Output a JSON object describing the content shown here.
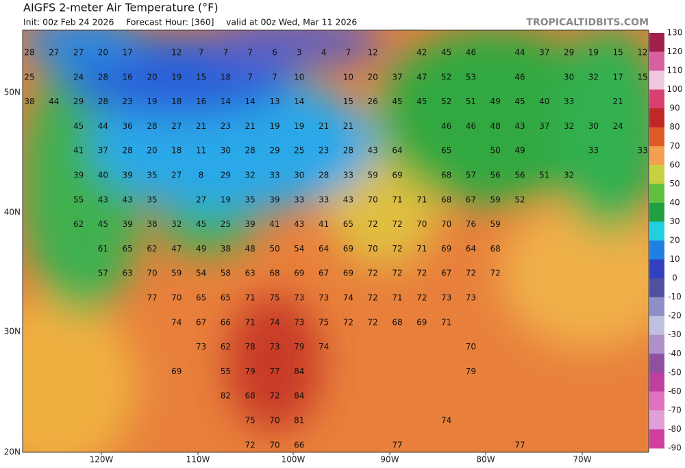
{
  "header": {
    "title": "AIGFS 2-meter Air Temperature (°F)",
    "init": "Init: 00z Feb 24 2026",
    "forecast_hour": "Forecast Hour: [360]",
    "valid": "valid at 00z Wed, Mar 11 2026",
    "source": "TROPICALTIDBITS.COM"
  },
  "map": {
    "latitude_labels": [
      "50N",
      "40N",
      "30N",
      "20N"
    ],
    "longitude_labels": [
      "120W",
      "110W",
      "100W",
      "90W",
      "80W",
      "70W"
    ],
    "station_values": [
      [
        28,
        27,
        27,
        20,
        17,
        null,
        12,
        7,
        7,
        7,
        6,
        3,
        4,
        7,
        12,
        null,
        42,
        45,
        46,
        null,
        44,
        37,
        29,
        19,
        15,
        12
      ],
      [
        25,
        null,
        24,
        28,
        16,
        20,
        19,
        15,
        18,
        7,
        7,
        10,
        null,
        10,
        20,
        37,
        47,
        52,
        53,
        null,
        46,
        null,
        30,
        32,
        17,
        15
      ],
      [
        38,
        44,
        29,
        28,
        23,
        19,
        18,
        16,
        14,
        14,
        13,
        14,
        null,
        15,
        26,
        45,
        45,
        52,
        51,
        49,
        45,
        40,
        33,
        null,
        21,
        null
      ],
      [
        null,
        null,
        45,
        44,
        36,
        28,
        27,
        21,
        23,
        21,
        19,
        19,
        21,
        21,
        null,
        null,
        null,
        46,
        46,
        48,
        43,
        37,
        32,
        30,
        24,
        null
      ],
      [
        null,
        null,
        41,
        37,
        28,
        20,
        18,
        11,
        30,
        28,
        29,
        25,
        23,
        28,
        43,
        64,
        null,
        65,
        null,
        50,
        49,
        null,
        null,
        33,
        null,
        33
      ],
      [
        null,
        null,
        39,
        40,
        39,
        35,
        27,
        8,
        29,
        32,
        33,
        30,
        28,
        33,
        59,
        69,
        null,
        68,
        57,
        56,
        56,
        51,
        32,
        null,
        null,
        null
      ],
      [
        null,
        null,
        55,
        43,
        43,
        35,
        null,
        27,
        19,
        35,
        39,
        33,
        33,
        43,
        70,
        71,
        71,
        68,
        67,
        59,
        52,
        null,
        null,
        null,
        null,
        null
      ],
      [
        null,
        null,
        62,
        45,
        39,
        38,
        32,
        45,
        25,
        39,
        41,
        43,
        41,
        65,
        72,
        72,
        70,
        70,
        76,
        59,
        null,
        null,
        null,
        null,
        null,
        null
      ],
      [
        null,
        null,
        null,
        61,
        65,
        62,
        47,
        49,
        38,
        48,
        50,
        54,
        64,
        69,
        70,
        72,
        71,
        69,
        64,
        68,
        null,
        null,
        null,
        null,
        null,
        null
      ],
      [
        null,
        null,
        null,
        57,
        63,
        70,
        59,
        54,
        58,
        63,
        68,
        69,
        67,
        69,
        72,
        72,
        72,
        67,
        72,
        72,
        null,
        null,
        null,
        null,
        null,
        null
      ],
      [
        null,
        null,
        null,
        null,
        null,
        77,
        70,
        65,
        65,
        71,
        75,
        73,
        73,
        74,
        72,
        71,
        72,
        73,
        73,
        null,
        null,
        null,
        null,
        null,
        null,
        null
      ],
      [
        null,
        null,
        null,
        null,
        null,
        null,
        74,
        67,
        66,
        71,
        74,
        73,
        75,
        72,
        72,
        68,
        69,
        71,
        null,
        null,
        null,
        null,
        null,
        null,
        null,
        null
      ],
      [
        null,
        null,
        null,
        null,
        null,
        null,
        null,
        73,
        62,
        78,
        73,
        79,
        74,
        null,
        null,
        null,
        null,
        null,
        70,
        null,
        null,
        null,
        null,
        null,
        null,
        null
      ],
      [
        null,
        null,
        null,
        null,
        null,
        null,
        69,
        null,
        55,
        79,
        77,
        84,
        null,
        null,
        null,
        null,
        null,
        null,
        79,
        null,
        null,
        null,
        null,
        null,
        null,
        null
      ],
      [
        null,
        null,
        null,
        null,
        null,
        null,
        null,
        null,
        82,
        68,
        72,
        84,
        null,
        null,
        null,
        null,
        null,
        null,
        null,
        null,
        null,
        null,
        null,
        null,
        null,
        null
      ],
      [
        null,
        null,
        null,
        null,
        null,
        null,
        null,
        null,
        null,
        75,
        70,
        81,
        null,
        null,
        null,
        null,
        null,
        74,
        null,
        null,
        null,
        null,
        null,
        null,
        null,
        null
      ],
      [
        null,
        null,
        null,
        null,
        null,
        null,
        null,
        null,
        null,
        72,
        70,
        66,
        null,
        null,
        null,
        77,
        null,
        null,
        null,
        null,
        77,
        null,
        null,
        null,
        null,
        null
      ]
    ]
  },
  "colorbar": {
    "ticks": [
      130,
      120,
      110,
      100,
      90,
      80,
      70,
      60,
      50,
      40,
      30,
      20,
      10,
      0,
      -10,
      -20,
      -30,
      -40,
      -50,
      -60,
      -70,
      -80,
      -90
    ],
    "colors": [
      "#a0204a",
      "#d860a0",
      "#f0c8e0",
      "#d84070",
      "#c02828",
      "#e05a28",
      "#f0a050",
      "#c8d040",
      "#60c040",
      "#20a040",
      "#20d0e0",
      "#2080e0",
      "#3040c0",
      "#5050a0",
      "#9090c8",
      "#c0c0e0",
      "#b090c8",
      "#9050a0",
      "#c040a0",
      "#e070c0",
      "#e0a0d8",
      "#d040a0"
    ]
  }
}
